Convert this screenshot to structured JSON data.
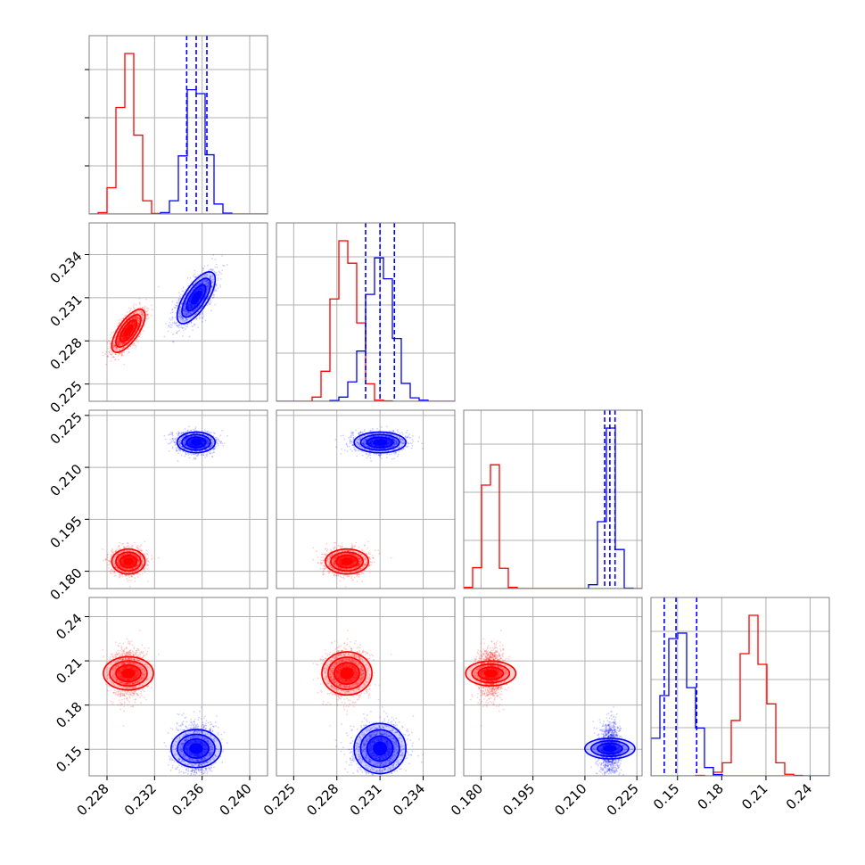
{
  "chart_data": {
    "type": "corner",
    "colors": {
      "red_series": "#ff0000",
      "blue_series": "#0000ff",
      "grid": "#b0b0b0",
      "frame": "#808080"
    },
    "series": [
      {
        "color": "#ff0000",
        "means": [
          0.2298,
          0.2287,
          0.1828,
          0.2015
        ],
        "sds": [
          0.0007,
          0.00075,
          0.0018,
          0.0085
        ],
        "corr": {
          "0-1": 0.7
        }
      },
      {
        "color": "#0000ff",
        "means": [
          0.2355,
          0.231,
          0.2172,
          0.1505
        ],
        "sds": [
          0.0008,
          0.0009,
          0.0015,
          0.0085
        ],
        "corr": {
          "0-1": 0.7
        }
      }
    ],
    "params": [
      {
        "range": [
          0.2265,
          0.2415
        ],
        "ticks": [
          "0.228",
          "0.232",
          "0.236",
          "0.240"
        ],
        "tick_values": [
          0.228,
          0.232,
          0.236,
          0.24
        ]
      },
      {
        "range": [
          0.2238,
          0.2362
        ],
        "ticks": [
          "0.225",
          "0.228",
          "0.231",
          "0.234"
        ],
        "tick_values": [
          0.225,
          0.228,
          0.231,
          0.234
        ]
      },
      {
        "range": [
          0.175,
          0.2265
        ],
        "ticks": [
          "0.180",
          "0.195",
          "0.210",
          "0.225"
        ],
        "tick_values": [
          0.18,
          0.195,
          0.21,
          0.225
        ]
      },
      {
        "range": [
          0.132,
          0.253
        ],
        "ticks": [
          "0.15",
          "0.18",
          "0.21",
          "0.24"
        ],
        "tick_values": [
          0.15,
          0.18,
          0.21,
          0.24
        ]
      }
    ],
    "quantile_lines": [
      [
        0.2347,
        0.2355,
        0.2364
      ],
      [
        0.23,
        0.231,
        0.232
      ],
      [
        0.2157,
        0.2172,
        0.2187
      ],
      [
        0.141,
        0.149,
        0.163
      ]
    ],
    "hist_y_ticks": 3,
    "grid": true
  }
}
